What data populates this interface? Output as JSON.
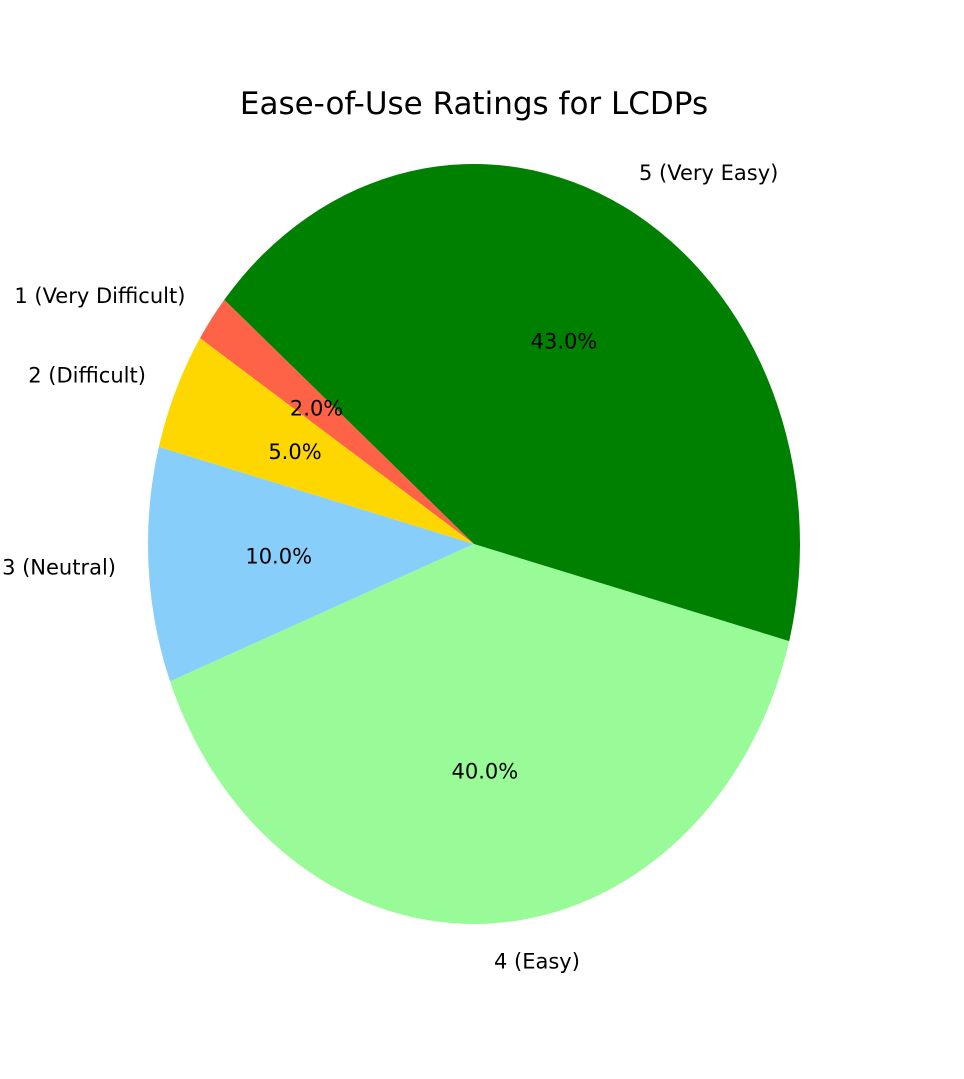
{
  "chart_data": {
    "type": "pie",
    "title": "Ease-of-Use Ratings for LCDPs",
    "slices": [
      {
        "label": "1 (Very Difficult)",
        "value": 2.0,
        "pct_label": "2.0%",
        "color": "#FF6347"
      },
      {
        "label": "2 (Difficult)",
        "value": 5.0,
        "pct_label": "5.0%",
        "color": "#FFD700"
      },
      {
        "label": "3 (Neutral)",
        "value": 10.0,
        "pct_label": "10.0%",
        "color": "#87CEFA"
      },
      {
        "label": "4 (Easy)",
        "value": 40.0,
        "pct_label": "40.0%",
        "color": "#98FB98"
      },
      {
        "label": "5 (Very Easy)",
        "value": 43.0,
        "pct_label": "43.0%",
        "color": "#008000"
      }
    ]
  }
}
